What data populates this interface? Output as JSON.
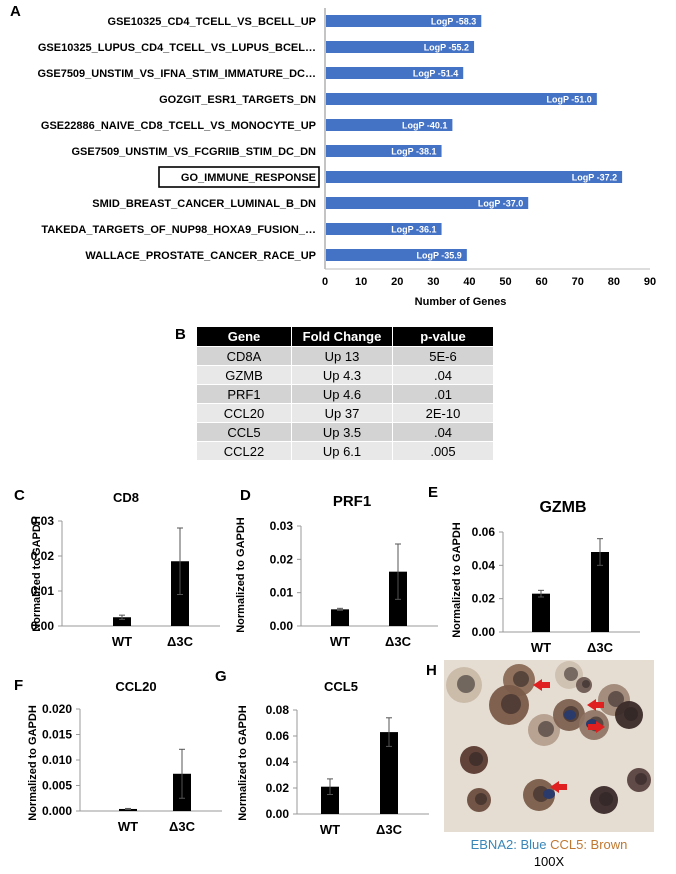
{
  "panel_letters": {
    "a": "A",
    "b": "B",
    "c": "C",
    "d": "D",
    "e": "E",
    "f": "F",
    "g": "G",
    "h": "H"
  },
  "chart_data": [
    {
      "panel": "A",
      "type": "bar",
      "orientation": "horizontal",
      "categories": [
        "GSE10325_CD4_TCELL_VS_BCELL_UP",
        "GSE10325_LUPUS_CD4_TCELL_VS_LUPUS_BCEL…",
        "GSE7509_UNSTIM_VS_IFNA_STIM_IMMATURE_DC…",
        "GOZGIT_ESR1_TARGETS_DN",
        "GSE22886_NAIVE_CD8_TCELL_VS_MONOCYTE_UP",
        "GSE7509_UNSTIM_VS_FCGRIIB_STIM_DC_DN",
        "GO_IMMUNE_RESPONSE",
        "SMID_BREAST_CANCER_LUMINAL_B_DN",
        "TAKEDA_TARGETS_OF_NUP98_HOXA9_FUSION_…",
        "WALLACE_PROSTATE_CANCER_RACE_UP"
      ],
      "values": [
        43,
        41,
        38,
        75,
        35,
        32,
        82,
        56,
        32,
        39
      ],
      "data_labels": [
        "LogP -58.3",
        "LogP -55.2",
        "LogP -51.4",
        "LogP -51.0",
        "LogP -40.1",
        "LogP -38.1",
        "LogP -37.2",
        "LogP -37.0",
        "LogP -36.1",
        "LogP -35.9"
      ],
      "highlighted": "GO_IMMUNE_RESPONSE",
      "xlabel": "Number of Genes",
      "xlim": [
        0,
        90
      ],
      "xticks": [
        "0",
        "10",
        "20",
        "30",
        "40",
        "50",
        "60",
        "70",
        "80",
        "90"
      ],
      "color": "#4472c4"
    },
    {
      "panel": "B",
      "type": "table",
      "columns": [
        "Gene",
        "Fold Change",
        "p-value"
      ],
      "rows": [
        [
          "CD8A",
          "Up 13",
          "5E-6"
        ],
        [
          "GZMB",
          "Up 4.3",
          ".04"
        ],
        [
          "PRF1",
          "Up 4.6",
          ".01"
        ],
        [
          "CCL20",
          "Up 37",
          "2E-10"
        ],
        [
          "CCL5",
          "Up 3.5",
          ".04"
        ],
        [
          "CCL22",
          "Up 6.1",
          ".005"
        ]
      ]
    },
    {
      "panel": "C",
      "type": "bar",
      "title": "CD8",
      "ylabel": "Normalized to GAPDH",
      "categories": [
        "WT",
        "Δ3C"
      ],
      "values": [
        0.0025,
        0.0185
      ],
      "errors": [
        0.0006,
        0.0095
      ],
      "ylim": [
        0,
        0.03
      ],
      "yticks": [
        "0.00",
        "0.01",
        "0.02",
        "0.03"
      ]
    },
    {
      "panel": "D",
      "type": "bar",
      "title": "PRF1",
      "ylabel": "Normalized to GAPDH",
      "categories": [
        "WT",
        "Δ3C"
      ],
      "values": [
        0.005,
        0.0163
      ],
      "errors": [
        0.0003,
        0.0083
      ],
      "ylim": [
        0,
        0.03
      ],
      "yticks": [
        "0.00",
        "0.01",
        "0.02",
        "0.03"
      ]
    },
    {
      "panel": "E",
      "type": "bar",
      "title": "GZMB",
      "ylabel": "Normalized to GAPDH",
      "categories": [
        "WT",
        "Δ3C"
      ],
      "values": [
        0.023,
        0.048
      ],
      "errors": [
        0.002,
        0.008
      ],
      "ylim": [
        0,
        0.06
      ],
      "yticks": [
        "0.00",
        "0.02",
        "0.04",
        "0.06"
      ]
    },
    {
      "panel": "F",
      "type": "bar",
      "title": "CCL20",
      "ylabel": "Normalized to GAPDH",
      "categories": [
        "WT",
        "Δ3C"
      ],
      "values": [
        0.0004,
        0.0073
      ],
      "errors": [
        0.0001,
        0.0048
      ],
      "ylim": [
        0,
        0.02
      ],
      "yticks": [
        "0.000",
        "0.005",
        "0.010",
        "0.015",
        "0.020"
      ]
    },
    {
      "panel": "G",
      "type": "bar",
      "title": "CCL5",
      "ylabel": "Normalized to GAPDH",
      "categories": [
        "WT",
        "Δ3C"
      ],
      "values": [
        0.021,
        0.063
      ],
      "errors": [
        0.006,
        0.011
      ],
      "ylim": [
        0,
        0.08
      ],
      "yticks": [
        "0.00",
        "0.02",
        "0.04",
        "0.06",
        "0.08"
      ]
    }
  ],
  "micrograph": {
    "caption_blue": "EBNA2: Blue",
    "caption_brown": "CCL5: Brown",
    "magnification": "100X",
    "colors": {
      "background": "#e6ddd2",
      "brown": "#6a4a3a",
      "dark": "#2a2020",
      "arrow": "#e02020"
    }
  }
}
